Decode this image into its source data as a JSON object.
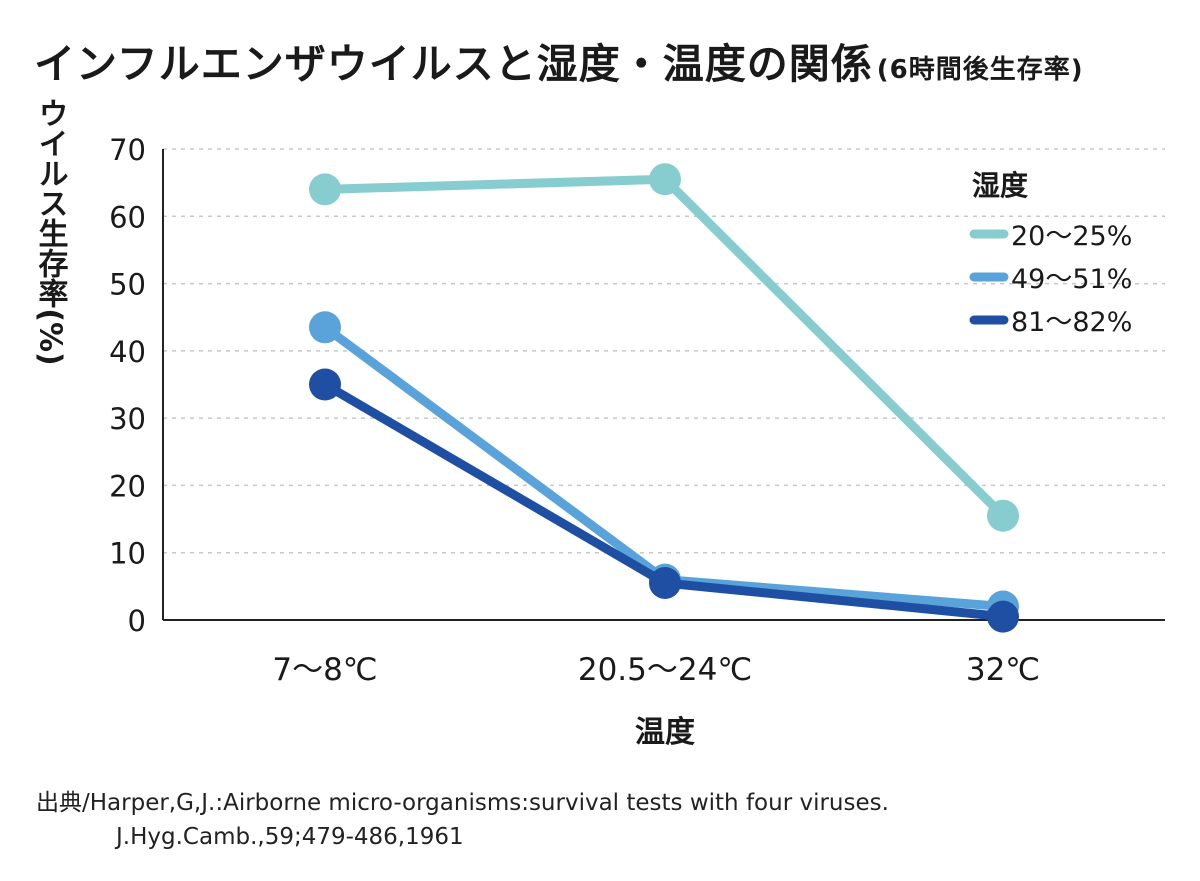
{
  "title": "インフルエンザウイルスと湿度・温度の関係",
  "subtitle": "(6時間後生存率)",
  "source": {
    "line1": "出典/Harper,G,J.:Airborne micro-organisms:survival tests with four viruses.",
    "line2": "J.Hyg.Camb.,59;479-486,1961"
  },
  "chart_data": {
    "type": "line",
    "categories": [
      "7〜8℃",
      "20.5〜24℃",
      "32℃"
    ],
    "xlabel": "温度",
    "ylabel": "ウイルス生存率(%)",
    "ylim": [
      0,
      70
    ],
    "yticks": [
      0,
      10,
      20,
      30,
      40,
      50,
      60,
      70
    ],
    "grid": true,
    "legend_title": "湿度",
    "legend_position": "top-right",
    "series": [
      {
        "name": "20〜25%",
        "values": [
          64,
          65.5,
          15.5
        ],
        "color": "#87cdd0"
      },
      {
        "name": "49〜51%",
        "values": [
          43.5,
          6,
          2
        ],
        "color": "#59a3da"
      },
      {
        "name": "81〜82%",
        "values": [
          35,
          5.5,
          0.5
        ],
        "color": "#1f4fa3"
      }
    ]
  }
}
